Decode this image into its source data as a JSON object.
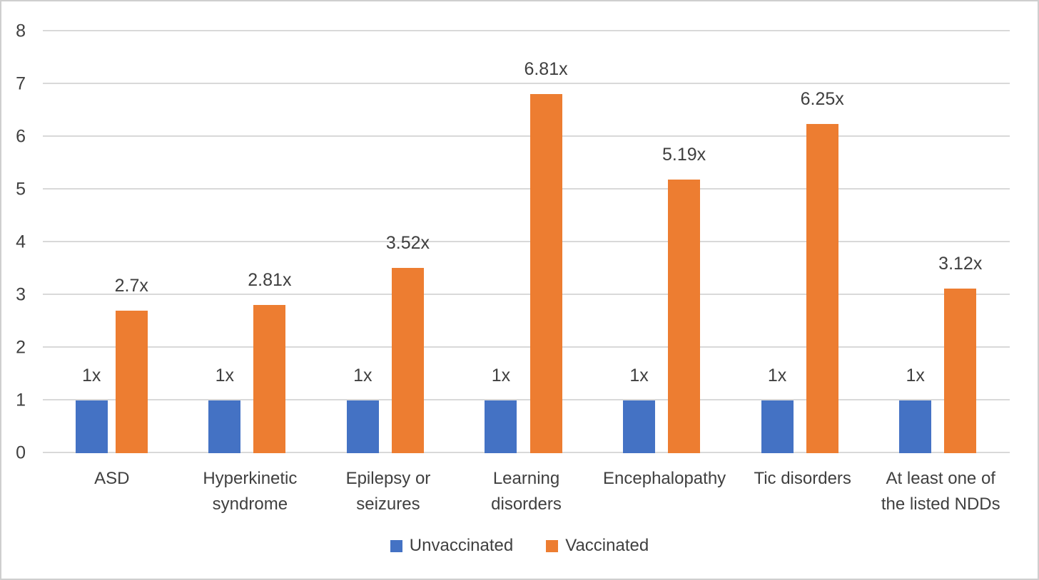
{
  "chart_data": {
    "type": "bar",
    "title": "",
    "xlabel": "",
    "ylabel": "",
    "categories": [
      "ASD",
      "Hyperkinetic syndrome",
      "Epilepsy or seizures",
      "Learning disorders",
      "Encephalopathy",
      "Tic disorders",
      "At least one of the listed NDDs"
    ],
    "series": [
      {
        "name": "Unvaccinated",
        "color": "#4472C4",
        "values": [
          1,
          1,
          1,
          1,
          1,
          1,
          1
        ],
        "labels": [
          "1x",
          "1x",
          "1x",
          "1x",
          "1x",
          "1x",
          "1x"
        ]
      },
      {
        "name": "Vaccinated",
        "color": "#ED7D31",
        "values": [
          2.7,
          2.81,
          3.52,
          6.81,
          5.19,
          6.25,
          3.12
        ],
        "labels": [
          "2.7x",
          "2.81x",
          "3.52x",
          "6.81x",
          "5.19x",
          "6.25x",
          "3.12x"
        ]
      }
    ],
    "ylim": [
      0,
      8
    ],
    "yticks": [
      0,
      1,
      2,
      3,
      4,
      5,
      6,
      7,
      8
    ],
    "grid": true,
    "gridline_color": "#d9d9d9",
    "legend_position": "bottom",
    "data_label_suffix": "x"
  }
}
